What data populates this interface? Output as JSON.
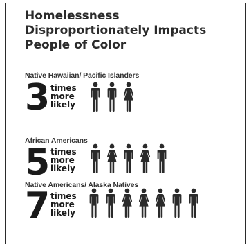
{
  "title": [
    "Homelessness",
    "Disproportionately Impacts",
    "People of Color"
  ],
  "groups": [
    {
      "label": "Native Hawaiian/ Pacific Islanders",
      "number": "3",
      "words": [
        "times",
        "more",
        "likely"
      ],
      "figures": [
        "male",
        "male",
        "female"
      ]
    },
    {
      "label": "African Americans",
      "number": "5",
      "words": [
        "times",
        "more",
        "likely"
      ],
      "figures": [
        "male",
        "female",
        "male",
        "female",
        "male"
      ]
    },
    {
      "label": "Native Americans/ Alaska Natives",
      "number": "7",
      "words": [
        "times",
        "more",
        "likely"
      ],
      "figures": [
        "male",
        "male",
        "female",
        "female",
        "female",
        "male",
        "male"
      ]
    }
  ],
  "colors": {
    "text": "#1a1a1a",
    "figure": "#2a2a2a",
    "border": "#2a2a2a"
  }
}
